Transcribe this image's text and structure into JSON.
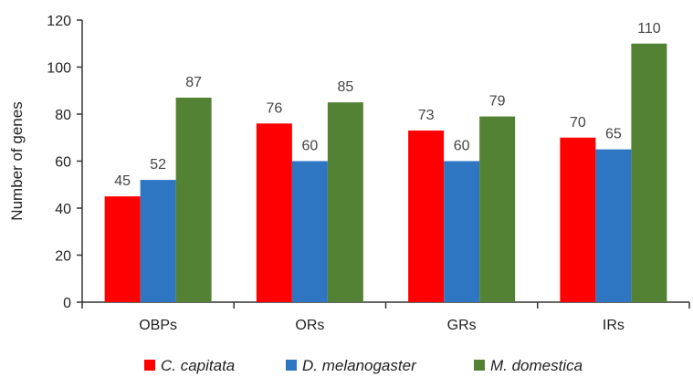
{
  "chart_data": {
    "type": "bar",
    "categories": [
      "OBPs",
      "ORs",
      "GRs",
      "IRs"
    ],
    "series": [
      {
        "name": "C. capitata",
        "color": "#ff0000",
        "values": [
          45,
          76,
          73,
          70
        ]
      },
      {
        "name": "D. melanogaster",
        "color": "#2e75c2",
        "values": [
          52,
          60,
          60,
          65
        ]
      },
      {
        "name": "M. domestica",
        "color": "#548235",
        "values": [
          87,
          85,
          79,
          110
        ]
      }
    ],
    "title": "",
    "xlabel": "",
    "ylabel": "Number of genes",
    "ylim": [
      0,
      120
    ],
    "yticks": [
      0,
      20,
      40,
      60,
      80,
      100,
      120
    ],
    "grid": false,
    "legend_position": "bottom"
  }
}
